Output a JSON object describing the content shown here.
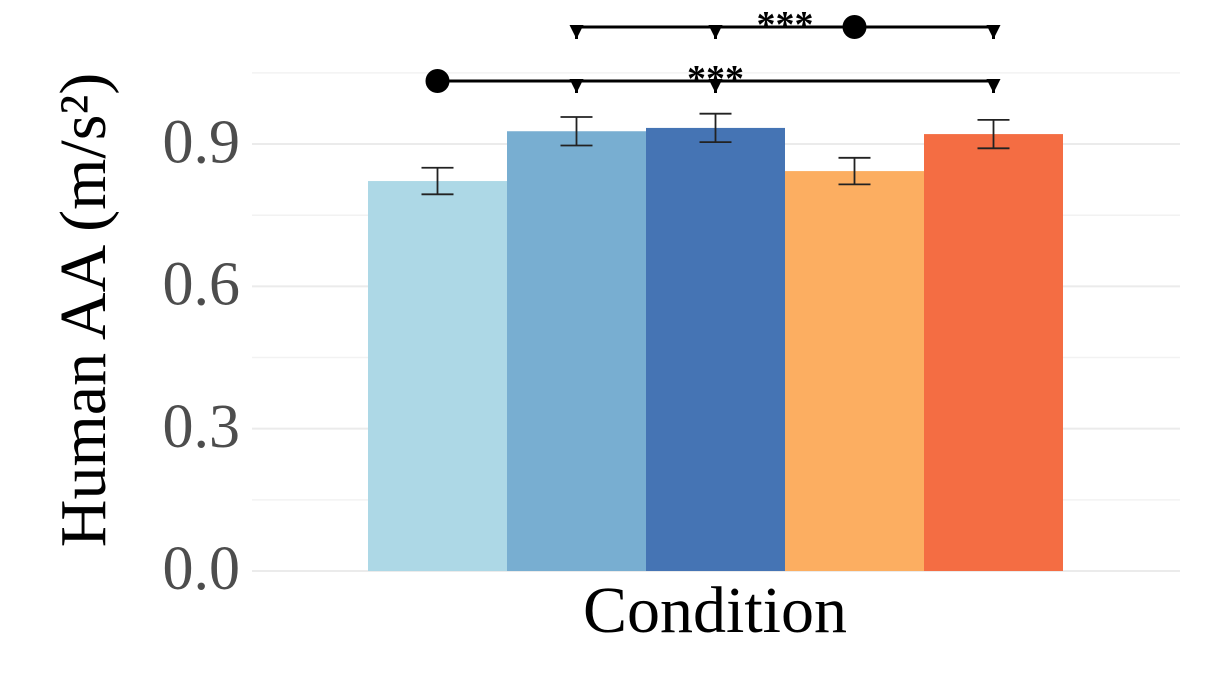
{
  "chart_data": {
    "type": "bar",
    "values": [
      0.822,
      0.927,
      0.934,
      0.843,
      0.921
    ],
    "errors": [
      0.028,
      0.03,
      0.03,
      0.028,
      0.03
    ],
    "colors": [
      "#add8e6",
      "#78aed1",
      "#4574b4",
      "#fcae61",
      "#f46d43"
    ],
    "x_label": "Condition",
    "y_label": "Human AA (m/s²)",
    "ylim": [
      0,
      1.07
    ],
    "yticks": [
      {
        "value": 0,
        "label": "0.0"
      },
      0.3,
      0.6,
      0.9
    ],
    "grid": true,
    "annotations": [
      {
        "label": "***",
        "from": 0,
        "to": [
          1,
          2,
          4
        ]
      },
      {
        "label": "***",
        "from": 3,
        "to": [
          1,
          2,
          4
        ]
      }
    ]
  }
}
